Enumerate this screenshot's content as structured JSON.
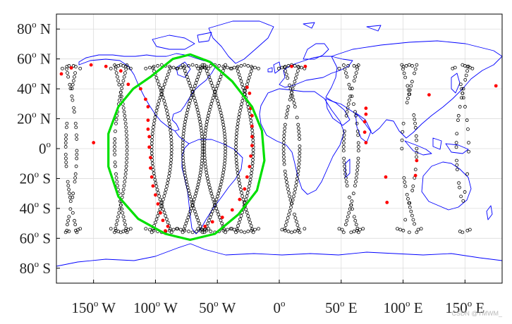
{
  "chart_data": {
    "type": "scatter",
    "title": "",
    "xlabel": "",
    "ylabel": "",
    "xlim": [
      -180,
      180
    ],
    "ylim": [
      -90,
      90
    ],
    "grid": true,
    "xticks": [
      {
        "value": -150,
        "num": "150",
        "dir": "W"
      },
      {
        "value": -100,
        "num": "100",
        "dir": "W"
      },
      {
        "value": -50,
        "num": "50",
        "dir": "W"
      },
      {
        "value": 0,
        "num": "0",
        "dir": ""
      },
      {
        "value": 50,
        "num": "50",
        "dir": "E"
      },
      {
        "value": 100,
        "num": "100",
        "dir": "E"
      },
      {
        "value": 150,
        "num": "150",
        "dir": "E"
      }
    ],
    "yticks": [
      {
        "value": 80,
        "num": "80",
        "dir": "N"
      },
      {
        "value": 60,
        "num": "60",
        "dir": "N"
      },
      {
        "value": 40,
        "num": "40",
        "dir": "N"
      },
      {
        "value": 20,
        "num": "20",
        "dir": "N"
      },
      {
        "value": 0,
        "num": "0",
        "dir": ""
      },
      {
        "value": -20,
        "num": "20",
        "dir": "S"
      },
      {
        "value": -40,
        "num": "40",
        "dir": "S"
      },
      {
        "value": -60,
        "num": "60",
        "dir": "S"
      },
      {
        "value": -80,
        "num": "80",
        "dir": "S"
      }
    ],
    "degree_symbol": "o",
    "coverage_boundary": {
      "color": "#00e000",
      "points": [
        [
          -104,
          48
        ],
        [
          -86,
          60
        ],
        [
          -72,
          63
        ],
        [
          -56,
          58
        ],
        [
          -38,
          45
        ],
        [
          -22,
          28
        ],
        [
          -14,
          12
        ],
        [
          -12,
          -8
        ],
        [
          -18,
          -28
        ],
        [
          -33,
          -44
        ],
        [
          -52,
          -57
        ],
        [
          -72,
          -61
        ],
        [
          -92,
          -57
        ],
        [
          -114,
          -47
        ],
        [
          -130,
          -32
        ],
        [
          -138,
          -12
        ],
        [
          -138,
          10
        ],
        [
          -130,
          28
        ],
        [
          -118,
          40
        ]
      ]
    },
    "series": [
      {
        "marker": "open-circle",
        "color": "#000000",
        "kind": "track_bands",
        "bands": [
          {
            "x0": -168,
            "amp": 9,
            "spacing": 2.6,
            "density": 0.5
          },
          {
            "x0": -128,
            "amp": 10,
            "spacing": 2.6,
            "density": 0.9
          },
          {
            "x0": -95,
            "amp": 16,
            "spacing": 2.2,
            "density": 1.0
          },
          {
            "x0": -70,
            "amp": 16,
            "spacing": 2.0,
            "density": 1.0
          },
          {
            "x0": -52,
            "amp": 17,
            "spacing": 2.0,
            "density": 1.0
          },
          {
            "x0": -28,
            "amp": 14,
            "spacing": 2.2,
            "density": 1.0
          },
          {
            "x0": 10,
            "amp": 13,
            "spacing": 2.4,
            "density": 0.9
          },
          {
            "x0": 58,
            "amp": 12,
            "spacing": 2.6,
            "density": 0.8
          },
          {
            "x0": 105,
            "amp": 12,
            "spacing": 2.8,
            "density": 0.55
          },
          {
            "x0": 148,
            "amp": 10,
            "spacing": 3.0,
            "density": 0.45
          }
        ],
        "lat_range": [
          -56,
          56
        ]
      },
      {
        "marker": "filled-dot",
        "color": "#ff0000",
        "kind": "points",
        "points": [
          [
            -176,
            50
          ],
          [
            -168,
            54
          ],
          [
            -152,
            56
          ],
          [
            -140,
            55
          ],
          [
            -128,
            52
          ],
          [
            -122,
            43
          ],
          [
            -112,
            40
          ],
          [
            -108,
            33
          ],
          [
            -106,
            28
          ],
          [
            -106,
            19
          ],
          [
            -106,
            13
          ],
          [
            -105,
            8
          ],
          [
            -105,
            1
          ],
          [
            -104,
            -6
          ],
          [
            -104,
            -13
          ],
          [
            -103,
            -19
          ],
          [
            -102,
            -25
          ],
          [
            -100,
            -31
          ],
          [
            -98,
            -37
          ],
          [
            -96,
            -43
          ],
          [
            -94,
            -48
          ],
          [
            -90,
            -52
          ],
          [
            -26,
            41
          ],
          [
            -24,
            37
          ],
          [
            -23,
            27
          ],
          [
            -22,
            22
          ],
          [
            -22,
            15
          ],
          [
            -22,
            8
          ],
          [
            -22,
            2
          ],
          [
            -23,
            -5
          ],
          [
            -24,
            -12
          ],
          [
            -26,
            -19
          ],
          [
            -28,
            -27
          ],
          [
            -32,
            -34
          ],
          [
            -38,
            -41
          ],
          [
            -46,
            -46
          ],
          [
            -54,
            -49
          ],
          [
            -92,
            -55
          ],
          [
            -60,
            -52
          ],
          [
            10,
            55
          ],
          [
            21,
            55
          ],
          [
            70,
            27
          ],
          [
            70,
            23
          ],
          [
            69,
            18
          ],
          [
            69,
            11
          ],
          [
            70,
            4
          ],
          [
            86,
            -19
          ],
          [
            87,
            -36
          ],
          [
            121,
            36
          ],
          [
            111,
            -8
          ],
          [
            110,
            -18
          ],
          [
            175,
            42
          ],
          [
            -150,
            4
          ]
        ]
      }
    ]
  },
  "watermark": "CSDN @YMWM_"
}
